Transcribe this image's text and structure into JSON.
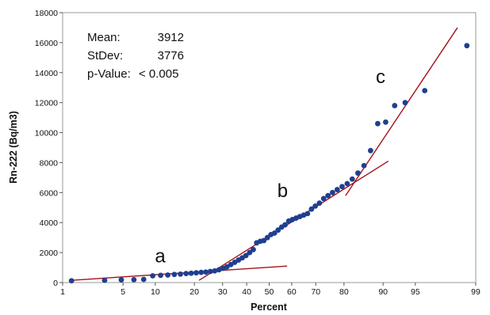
{
  "chart_data": {
    "type": "scatter",
    "title": "",
    "xlabel": "Percent",
    "ylabel": "Rn-222 (Bq/m3)",
    "x_scale": "normal-probability",
    "xlim": [
      1,
      99
    ],
    "ylim": [
      0,
      18000
    ],
    "x_ticks": [
      1,
      5,
      10,
      20,
      30,
      40,
      50,
      60,
      70,
      80,
      90,
      95,
      99
    ],
    "x_tick_labels": [
      "1",
      "5",
      "10",
      "20",
      "30",
      "40",
      "50",
      "60",
      "70",
      "80",
      "90",
      "95",
      "99"
    ],
    "y_ticks": [
      0,
      2000,
      4000,
      6000,
      8000,
      10000,
      12000,
      14000,
      16000,
      18000
    ],
    "y_tick_labels": [
      "0",
      "2000",
      "4000",
      "6000",
      "8000",
      "10000",
      "12000",
      "14000",
      "16000",
      "18000"
    ],
    "stats": [
      {
        "label": "Mean:",
        "value": "3912"
      },
      {
        "label": "StDev:",
        "value": "3776"
      },
      {
        "label": "p-Value:",
        "value": "< 0.005"
      }
    ],
    "points": [
      {
        "x": 1.3,
        "y": 120
      },
      {
        "x": 3.2,
        "y": 150
      },
      {
        "x": 4.8,
        "y": 180
      },
      {
        "x": 6.4,
        "y": 190
      },
      {
        "x": 7.9,
        "y": 210
      },
      {
        "x": 9.5,
        "y": 450
      },
      {
        "x": 11.1,
        "y": 480
      },
      {
        "x": 12.7,
        "y": 500
      },
      {
        "x": 14.3,
        "y": 540
      },
      {
        "x": 15.9,
        "y": 560
      },
      {
        "x": 17.5,
        "y": 600
      },
      {
        "x": 19.0,
        "y": 620
      },
      {
        "x": 20.6,
        "y": 650
      },
      {
        "x": 22.2,
        "y": 680
      },
      {
        "x": 23.8,
        "y": 700
      },
      {
        "x": 25.4,
        "y": 740
      },
      {
        "x": 27.0,
        "y": 780
      },
      {
        "x": 28.6,
        "y": 850
      },
      {
        "x": 30.2,
        "y": 950
      },
      {
        "x": 31.7,
        "y": 1050
      },
      {
        "x": 33.3,
        "y": 1200
      },
      {
        "x": 34.9,
        "y": 1350
      },
      {
        "x": 36.5,
        "y": 1500
      },
      {
        "x": 38.1,
        "y": 1650
      },
      {
        "x": 39.7,
        "y": 1800
      },
      {
        "x": 41.3,
        "y": 2000
      },
      {
        "x": 42.9,
        "y": 2200
      },
      {
        "x": 44.4,
        "y": 2650
      },
      {
        "x": 46.0,
        "y": 2750
      },
      {
        "x": 47.6,
        "y": 2800
      },
      {
        "x": 49.2,
        "y": 3000
      },
      {
        "x": 50.8,
        "y": 3200
      },
      {
        "x": 52.4,
        "y": 3300
      },
      {
        "x": 54.0,
        "y": 3500
      },
      {
        "x": 55.6,
        "y": 3700
      },
      {
        "x": 57.1,
        "y": 3850
      },
      {
        "x": 58.7,
        "y": 4100
      },
      {
        "x": 60.3,
        "y": 4200
      },
      {
        "x": 61.9,
        "y": 4300
      },
      {
        "x": 63.5,
        "y": 4400
      },
      {
        "x": 65.1,
        "y": 4500
      },
      {
        "x": 66.7,
        "y": 4600
      },
      {
        "x": 68.3,
        "y": 4900
      },
      {
        "x": 69.8,
        "y": 5100
      },
      {
        "x": 71.4,
        "y": 5300
      },
      {
        "x": 73.0,
        "y": 5600
      },
      {
        "x": 74.6,
        "y": 5800
      },
      {
        "x": 76.2,
        "y": 6000
      },
      {
        "x": 77.8,
        "y": 6200
      },
      {
        "x": 79.4,
        "y": 6400
      },
      {
        "x": 81.0,
        "y": 6600
      },
      {
        "x": 82.5,
        "y": 6900
      },
      {
        "x": 84.1,
        "y": 7300
      },
      {
        "x": 85.7,
        "y": 7800
      },
      {
        "x": 87.3,
        "y": 8800
      },
      {
        "x": 88.9,
        "y": 10600
      },
      {
        "x": 90.5,
        "y": 10700
      },
      {
        "x": 92.1,
        "y": 11800
      },
      {
        "x": 93.7,
        "y": 12000
      },
      {
        "x": 96.0,
        "y": 12800
      },
      {
        "x": 98.7,
        "y": 15800
      }
    ],
    "fit_lines": [
      {
        "label": "a",
        "x": [
          1.3,
          58.0
        ],
        "y": [
          150,
          1100
        ]
      },
      {
        "label": "b",
        "x": [
          21.5,
          91.0
        ],
        "y": [
          150,
          8100
        ]
      },
      {
        "label": "c",
        "x": [
          80.5,
          98.3
        ],
        "y": [
          5800,
          17000
        ]
      }
    ],
    "annotations": [
      {
        "text": "a",
        "x": 11.0,
        "y": 1350
      },
      {
        "text": "b",
        "x": 56.0,
        "y": 5700
      },
      {
        "text": "c",
        "x": 89.5,
        "y": 13300
      }
    ],
    "colors": {
      "points": "#1f3f8f",
      "fit_lines": "#a5111b",
      "frame": "#999999"
    },
    "grid": false,
    "legend": "none"
  }
}
